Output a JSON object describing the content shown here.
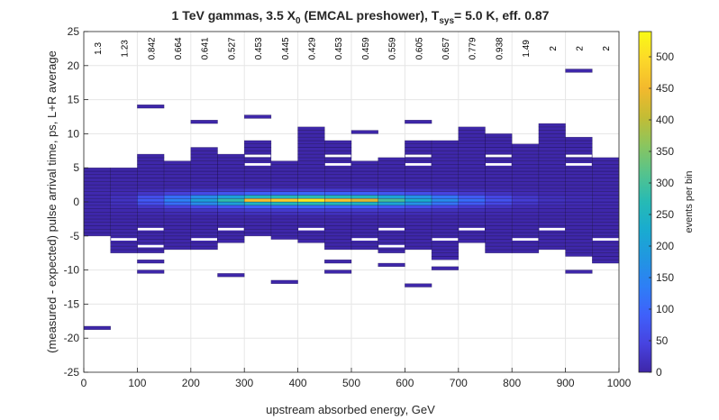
{
  "chart_data": {
    "type": "heatmap",
    "title": "1 TeV gammas, 3.5 X",
    "title_sub": "0",
    "title_mid": " (EMCAL preshower), T",
    "title_sub2": "sys",
    "title_end": "= 5.0 K, eff. 0.87",
    "xlabel": "upstream absorbed energy, GeV",
    "ylabel": "(measured - expected) pulse arrival time, ps, L+R average",
    "xlim": [
      0,
      1000
    ],
    "ylim": [
      -25,
      25
    ],
    "xticks": [
      "0",
      "100",
      "200",
      "300",
      "400",
      "500",
      "600",
      "700",
      "800",
      "900",
      "1000"
    ],
    "yticks": [
      "25",
      "20",
      "15",
      "10",
      "5",
      "0",
      "-5",
      "-10",
      "-15",
      "-20",
      "-25"
    ],
    "grid": true,
    "bin_width_x": 50,
    "bin_height_y": 0.5,
    "colorbar": {
      "label": "events per bin",
      "range": [
        0,
        540
      ],
      "ticks": [
        "0",
        "50",
        "100",
        "150",
        "200",
        "250",
        "300",
        "350",
        "400",
        "450",
        "500"
      ]
    },
    "column_labels": [
      {
        "x": 25,
        "text": "1.3"
      },
      {
        "x": 75,
        "text": "1.23"
      },
      {
        "x": 125,
        "text": "0.842"
      },
      {
        "x": 175,
        "text": "0.664"
      },
      {
        "x": 225,
        "text": "0.641"
      },
      {
        "x": 275,
        "text": "0.527"
      },
      {
        "x": 325,
        "text": "0.453"
      },
      {
        "x": 375,
        "text": "0.445"
      },
      {
        "x": 425,
        "text": "0.429"
      },
      {
        "x": 475,
        "text": "0.453"
      },
      {
        "x": 525,
        "text": "0.459"
      },
      {
        "x": 575,
        "text": "0.559"
      },
      {
        "x": 625,
        "text": "0.605"
      },
      {
        "x": 675,
        "text": "0.657"
      },
      {
        "x": 725,
        "text": "0.779"
      },
      {
        "x": 775,
        "text": "0.938"
      },
      {
        "x": 825,
        "text": "1.49"
      },
      {
        "x": 875,
        "text": "2"
      },
      {
        "x": 925,
        "text": "2"
      },
      {
        "x": 975,
        "text": "2"
      }
    ],
    "core_bins": [
      {
        "x0": 0,
        "x1": 50,
        "values": [
          2,
          3,
          4,
          6,
          6,
          5,
          5,
          4,
          3
        ]
      },
      {
        "x0": 50,
        "x1": 100,
        "values": [
          3,
          5,
          8,
          15,
          20,
          15,
          8,
          5,
          3
        ]
      },
      {
        "x0": 100,
        "x1": 150,
        "values": [
          5,
          10,
          25,
          60,
          80,
          60,
          25,
          10,
          5
        ]
      },
      {
        "x0": 150,
        "x1": 200,
        "values": [
          8,
          15,
          40,
          110,
          140,
          110,
          40,
          15,
          8
        ]
      },
      {
        "x0": 200,
        "x1": 250,
        "values": [
          10,
          20,
          55,
          160,
          200,
          160,
          55,
          20,
          10
        ]
      },
      {
        "x0": 250,
        "x1": 300,
        "values": [
          12,
          25,
          70,
          200,
          280,
          200,
          70,
          25,
          12
        ]
      },
      {
        "x0": 300,
        "x1": 350,
        "values": [
          15,
          30,
          90,
          250,
          460,
          250,
          90,
          30,
          15
        ]
      },
      {
        "x0": 350,
        "x1": 400,
        "values": [
          15,
          30,
          95,
          260,
          480,
          260,
          95,
          30,
          15
        ]
      },
      {
        "x0": 400,
        "x1": 450,
        "values": [
          15,
          32,
          100,
          270,
          520,
          270,
          100,
          32,
          15
        ]
      },
      {
        "x0": 450,
        "x1": 500,
        "values": [
          15,
          30,
          95,
          260,
          470,
          260,
          95,
          30,
          15
        ]
      },
      {
        "x0": 500,
        "x1": 550,
        "values": [
          14,
          28,
          90,
          250,
          430,
          250,
          90,
          28,
          14
        ]
      },
      {
        "x0": 550,
        "x1": 600,
        "values": [
          12,
          25,
          75,
          210,
          300,
          210,
          75,
          25,
          12
        ]
      },
      {
        "x0": 600,
        "x1": 650,
        "values": [
          10,
          20,
          60,
          170,
          230,
          170,
          60,
          20,
          10
        ]
      },
      {
        "x0": 650,
        "x1": 700,
        "values": [
          8,
          15,
          45,
          120,
          160,
          120,
          45,
          15,
          8
        ]
      },
      {
        "x0": 700,
        "x1": 750,
        "values": [
          6,
          12,
          30,
          80,
          110,
          80,
          30,
          12,
          6
        ]
      },
      {
        "x0": 750,
        "x1": 800,
        "values": [
          5,
          8,
          20,
          50,
          70,
          50,
          20,
          8,
          5
        ]
      },
      {
        "x0": 800,
        "x1": 850,
        "values": [
          3,
          5,
          10,
          25,
          35,
          25,
          10,
          5,
          3
        ]
      },
      {
        "x0": 850,
        "x1": 900,
        "values": [
          2,
          3,
          5,
          12,
          18,
          12,
          5,
          3,
          2
        ]
      },
      {
        "x0": 900,
        "x1": 950,
        "values": [
          2,
          2,
          4,
          8,
          12,
          8,
          4,
          2,
          2
        ]
      },
      {
        "x0": 950,
        "x1": 1000,
        "values": [
          1,
          2,
          3,
          5,
          8,
          5,
          3,
          2,
          1
        ]
      }
    ],
    "core_y_range": [
      -2.25,
      2.25
    ],
    "columns": [
      {
        "x0": 0,
        "x1": 50,
        "ranges": [
          [
            -5,
            5
          ]
        ],
        "outliers": [
          -18.75
        ]
      },
      {
        "x0": 50,
        "x1": 100,
        "ranges": [
          [
            -7.5,
            5
          ]
        ],
        "outliers": []
      },
      {
        "x0": 100,
        "x1": 150,
        "ranges": [
          [
            -7.5,
            7
          ]
        ],
        "outliers": [
          13.75,
          -9,
          -10.5
        ]
      },
      {
        "x0": 150,
        "x1": 200,
        "ranges": [
          [
            -7,
            6
          ]
        ],
        "outliers": []
      },
      {
        "x0": 200,
        "x1": 250,
        "ranges": [
          [
            -7,
            8
          ]
        ],
        "outliers": [
          11.5
        ]
      },
      {
        "x0": 250,
        "x1": 300,
        "ranges": [
          [
            -6,
            7
          ]
        ],
        "outliers": [
          -11
        ]
      },
      {
        "x0": 300,
        "x1": 350,
        "ranges": [
          [
            -5,
            8.75
          ]
        ],
        "outliers": [
          12.25
        ]
      },
      {
        "x0": 350,
        "x1": 400,
        "ranges": [
          [
            -5.5,
            6
          ]
        ],
        "outliers": [
          -12
        ]
      },
      {
        "x0": 400,
        "x1": 450,
        "ranges": [
          [
            -6,
            11
          ]
        ],
        "outliers": []
      },
      {
        "x0": 450,
        "x1": 500,
        "ranges": [
          [
            -7,
            8.75
          ]
        ],
        "outliers": [
          -9,
          -10.5
        ]
      },
      {
        "x0": 500,
        "x1": 550,
        "ranges": [
          [
            -7,
            6
          ]
        ],
        "outliers": [
          10
        ]
      },
      {
        "x0": 550,
        "x1": 600,
        "ranges": [
          [
            -7.5,
            6.5
          ]
        ],
        "outliers": [
          -9.5
        ]
      },
      {
        "x0": 600,
        "x1": 650,
        "ranges": [
          [
            -7,
            8.75
          ]
        ],
        "outliers": [
          11.5,
          -12.5
        ]
      },
      {
        "x0": 650,
        "x1": 700,
        "ranges": [
          [
            -8.5,
            9
          ]
        ],
        "outliers": [
          -10
        ]
      },
      {
        "x0": 700,
        "x1": 750,
        "ranges": [
          [
            -6,
            11
          ]
        ],
        "outliers": []
      },
      {
        "x0": 750,
        "x1": 800,
        "ranges": [
          [
            -7.5,
            10
          ]
        ],
        "outliers": []
      },
      {
        "x0": 800,
        "x1": 850,
        "ranges": [
          [
            -7.5,
            8.5
          ]
        ],
        "outliers": []
      },
      {
        "x0": 850,
        "x1": 900,
        "ranges": [
          [
            -7,
            11.5
          ]
        ],
        "outliers": []
      },
      {
        "x0": 900,
        "x1": 950,
        "ranges": [
          [
            -8,
            9.5
          ]
        ],
        "outliers": [
          19,
          -10.5
        ]
      },
      {
        "x0": 950,
        "x1": 1000,
        "ranges": [
          [
            -9,
            6.5
          ]
        ],
        "outliers": []
      }
    ]
  },
  "colors": {
    "low": "#3e26a8",
    "background": "#ffffff",
    "grid": "#e6e6e6",
    "axis": "#262626"
  },
  "colormap": [
    "#3e26a8",
    "#4743e0",
    "#3f60fa",
    "#2e7ef6",
    "#2196e1",
    "#19abd0",
    "#26bab5",
    "#55c38d",
    "#8bc55e",
    "#c4bc34",
    "#f3b92d",
    "#fcd829",
    "#f9fb15"
  ]
}
